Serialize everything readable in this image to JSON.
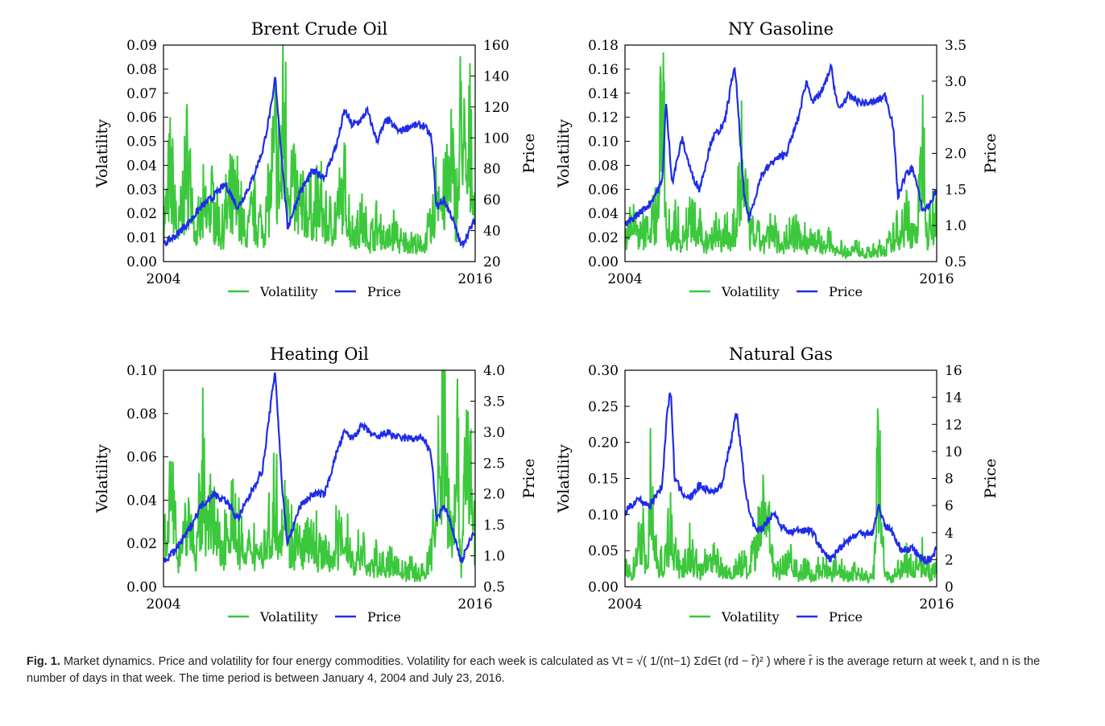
{
  "caption": {
    "label": "Fig. 1.",
    "text_part1": "Market dynamics. Price and volatility for four energy commodities. Volatility for each week is calculated as V",
    "text_formula": "t = √( 1/(nt−1) Σd∈t (rd − r̄)² )",
    "text_part2": " where r̄ is the average return at week t, and n is the number of days in that week. The time period is between January 4, 2004 and July 23, 2016."
  },
  "colors": {
    "volatility": "#3cc83c",
    "price": "#1f2de8"
  },
  "chart_data": [
    {
      "type": "line",
      "title": "Brent Crude Oil",
      "ylabel": "Volatility",
      "ylabel_right": "Price",
      "x_tick_labels": [
        "2004",
        "2016"
      ],
      "xlim": [
        2004,
        2016.56
      ],
      "ylim": [
        0,
        0.09
      ],
      "ylim_right": [
        20,
        160
      ],
      "y_ticks": [
        "0.00",
        "0.01",
        "0.02",
        "0.03",
        "0.04",
        "0.05",
        "0.06",
        "0.07",
        "0.08",
        "0.09"
      ],
      "y_ticks_right": [
        "20",
        "40",
        "60",
        "80",
        "100",
        "120",
        "140",
        "160"
      ],
      "legend": [
        "Volatility",
        "Price"
      ],
      "series": [
        {
          "name": "Price",
          "axis": "right",
          "x": [
            2004.0,
            2004.5,
            2005.0,
            2005.5,
            2006.0,
            2006.5,
            2007.0,
            2007.5,
            2008.0,
            2008.4,
            2008.5,
            2008.75,
            2009.0,
            2009.5,
            2010.0,
            2010.5,
            2011.0,
            2011.3,
            2011.6,
            2012.0,
            2012.2,
            2012.6,
            2013.0,
            2013.5,
            2014.0,
            2014.5,
            2014.8,
            2015.0,
            2015.3,
            2015.6,
            2016.0,
            2016.56
          ],
          "values": [
            31,
            37,
            45,
            55,
            62,
            70,
            55,
            70,
            92,
            125,
            140,
            90,
            42,
            65,
            78,
            75,
            97,
            118,
            108,
            112,
            118,
            98,
            112,
            104,
            108,
            108,
            100,
            55,
            60,
            50,
            30,
            47
          ]
        },
        {
          "name": "Volatility",
          "axis": "left",
          "x": [
            2004.0,
            2004.3,
            2004.6,
            2005.0,
            2005.3,
            2005.6,
            2006.0,
            2006.3,
            2006.6,
            2007.0,
            2007.3,
            2007.6,
            2008.0,
            2008.3,
            2008.5,
            2008.7,
            2008.85,
            2009.0,
            2009.3,
            2009.6,
            2010.0,
            2010.3,
            2010.6,
            2011.0,
            2011.3,
            2011.6,
            2012.0,
            2012.3,
            2012.6,
            2013.0,
            2013.3,
            2013.6,
            2014.0,
            2014.3,
            2014.6,
            2014.9,
            2015.0,
            2015.3,
            2015.6,
            2015.8,
            2016.0,
            2016.2,
            2016.4,
            2016.56
          ],
          "values": [
            0.02,
            0.044,
            0.015,
            0.052,
            0.012,
            0.025,
            0.03,
            0.015,
            0.028,
            0.032,
            0.012,
            0.025,
            0.018,
            0.035,
            0.06,
            0.04,
            0.081,
            0.05,
            0.034,
            0.028,
            0.025,
            0.03,
            0.018,
            0.025,
            0.035,
            0.015,
            0.02,
            0.012,
            0.018,
            0.01,
            0.016,
            0.009,
            0.01,
            0.007,
            0.012,
            0.02,
            0.045,
            0.03,
            0.05,
            0.025,
            0.077,
            0.04,
            0.06,
            0.03
          ]
        }
      ]
    },
    {
      "type": "line",
      "title": "NY Gasoline",
      "ylabel": "Volatility",
      "ylabel_right": "Price",
      "x_tick_labels": [
        "2004",
        "2016"
      ],
      "xlim": [
        2004,
        2016.56
      ],
      "ylim": [
        0,
        0.18
      ],
      "ylim_right": [
        0.5,
        3.5
      ],
      "y_ticks": [
        "0.00",
        "0.02",
        "0.04",
        "0.06",
        "0.08",
        "0.10",
        "0.12",
        "0.14",
        "0.16",
        "0.18"
      ],
      "y_ticks_right": [
        "0.5",
        "1.0",
        "1.5",
        "2.0",
        "2.5",
        "3.0",
        "3.5"
      ],
      "legend": [
        "Volatility",
        "Price"
      ],
      "series": [
        {
          "name": "Price",
          "axis": "right",
          "x": [
            2004.0,
            2004.5,
            2005.0,
            2005.5,
            2005.65,
            2005.9,
            2006.3,
            2006.7,
            2007.0,
            2007.5,
            2008.0,
            2008.4,
            2008.5,
            2008.8,
            2009.0,
            2009.5,
            2010.0,
            2010.5,
            2011.0,
            2011.3,
            2011.6,
            2012.0,
            2012.3,
            2012.6,
            2013.0,
            2013.5,
            2014.0,
            2014.5,
            2014.8,
            2015.0,
            2015.3,
            2015.6,
            2016.0,
            2016.3,
            2016.56
          ],
          "values": [
            1.0,
            1.15,
            1.3,
            1.6,
            2.7,
            1.6,
            2.2,
            1.7,
            1.5,
            2.2,
            2.4,
            3.2,
            2.9,
            1.4,
            1.1,
            1.7,
            1.9,
            2.0,
            2.5,
            3.0,
            2.7,
            2.9,
            3.2,
            2.6,
            2.8,
            2.7,
            2.7,
            2.8,
            2.4,
            1.4,
            1.7,
            1.8,
            1.2,
            1.3,
            1.5
          ]
        },
        {
          "name": "Volatility",
          "axis": "left",
          "x": [
            2004.0,
            2004.3,
            2004.6,
            2005.0,
            2005.3,
            2005.55,
            2005.65,
            2005.8,
            2006.0,
            2006.3,
            2006.6,
            2007.0,
            2007.3,
            2007.6,
            2008.0,
            2008.3,
            2008.5,
            2008.7,
            2008.9,
            2009.0,
            2009.3,
            2009.6,
            2010.0,
            2010.3,
            2010.6,
            2011.0,
            2011.3,
            2011.6,
            2012.0,
            2012.3,
            2012.6,
            2013.0,
            2013.3,
            2013.6,
            2014.0,
            2014.3,
            2014.6,
            2015.0,
            2015.3,
            2015.6,
            2015.8,
            2016.0,
            2016.2,
            2016.4,
            2016.56
          ],
          "values": [
            0.03,
            0.04,
            0.025,
            0.035,
            0.05,
            0.17,
            0.06,
            0.03,
            0.035,
            0.025,
            0.04,
            0.03,
            0.02,
            0.035,
            0.025,
            0.03,
            0.04,
            0.1,
            0.06,
            0.03,
            0.025,
            0.02,
            0.03,
            0.02,
            0.025,
            0.03,
            0.02,
            0.025,
            0.015,
            0.02,
            0.012,
            0.01,
            0.015,
            0.008,
            0.01,
            0.012,
            0.015,
            0.03,
            0.045,
            0.025,
            0.04,
            0.125,
            0.03,
            0.05,
            0.035
          ]
        }
      ]
    },
    {
      "type": "line",
      "title": "Heating Oil",
      "ylabel": "Volatility",
      "ylabel_right": "Price",
      "x_tick_labels": [
        "2004",
        "2016"
      ],
      "xlim": [
        2004,
        2016.56
      ],
      "ylim": [
        0,
        0.1
      ],
      "ylim_right": [
        0.5,
        4.0
      ],
      "y_ticks": [
        "0.00",
        "0.02",
        "0.04",
        "0.06",
        "0.08",
        "0.10"
      ],
      "y_ticks_right": [
        "0.5",
        "1.0",
        "1.5",
        "2.0",
        "2.5",
        "3.0",
        "3.5",
        "4.0"
      ],
      "legend": [
        "Volatility",
        "Price"
      ],
      "series": [
        {
          "name": "Price",
          "axis": "right",
          "x": [
            2004.0,
            2004.5,
            2005.0,
            2005.5,
            2006.0,
            2006.5,
            2007.0,
            2007.5,
            2008.0,
            2008.4,
            2008.5,
            2008.8,
            2009.0,
            2009.5,
            2010.0,
            2010.5,
            2011.0,
            2011.3,
            2011.6,
            2012.0,
            2012.3,
            2012.6,
            2013.0,
            2013.5,
            2014.0,
            2014.5,
            2014.8,
            2015.0,
            2015.3,
            2015.6,
            2016.0,
            2016.3,
            2016.56
          ],
          "values": [
            0.9,
            1.1,
            1.4,
            1.8,
            2.0,
            1.9,
            1.6,
            2.0,
            2.4,
            3.7,
            4.0,
            2.0,
            1.2,
            1.8,
            2.0,
            2.0,
            2.7,
            3.0,
            2.9,
            3.1,
            3.0,
            2.9,
            3.0,
            2.9,
            2.9,
            2.9,
            2.6,
            1.6,
            1.8,
            1.5,
            0.9,
            1.2,
            1.4
          ]
        },
        {
          "name": "Volatility",
          "axis": "left",
          "x": [
            2004.0,
            2004.3,
            2004.6,
            2005.0,
            2005.3,
            2005.6,
            2006.0,
            2006.3,
            2006.6,
            2007.0,
            2007.3,
            2007.6,
            2008.0,
            2008.3,
            2008.5,
            2008.7,
            2008.9,
            2009.0,
            2009.3,
            2009.6,
            2010.0,
            2010.3,
            2010.6,
            2011.0,
            2011.3,
            2011.6,
            2012.0,
            2012.3,
            2012.6,
            2013.0,
            2013.3,
            2013.6,
            2014.0,
            2014.3,
            2014.6,
            2015.0,
            2015.3,
            2015.6,
            2015.8,
            2016.0,
            2016.2,
            2016.4,
            2016.56
          ],
          "values": [
            0.035,
            0.048,
            0.02,
            0.045,
            0.015,
            0.06,
            0.035,
            0.02,
            0.04,
            0.03,
            0.015,
            0.025,
            0.02,
            0.03,
            0.05,
            0.035,
            0.055,
            0.03,
            0.025,
            0.02,
            0.025,
            0.02,
            0.015,
            0.025,
            0.03,
            0.015,
            0.02,
            0.01,
            0.015,
            0.01,
            0.015,
            0.008,
            0.01,
            0.007,
            0.01,
            0.04,
            0.098,
            0.03,
            0.08,
            0.015,
            0.099,
            0.05,
            0.035
          ]
        }
      ]
    },
    {
      "type": "line",
      "title": "Natural Gas",
      "ylabel": "Volatility",
      "ylabel_right": "Price",
      "x_tick_labels": [
        "2004",
        "2016"
      ],
      "xlim": [
        2004,
        2016.56
      ],
      "ylim": [
        0,
        0.3
      ],
      "ylim_right": [
        0,
        16
      ],
      "y_ticks": [
        "0.00",
        "0.05",
        "0.10",
        "0.15",
        "0.20",
        "0.25",
        "0.30"
      ],
      "y_ticks_right": [
        "0",
        "2",
        "4",
        "6",
        "8",
        "10",
        "12",
        "14",
        "16"
      ],
      "legend": [
        "Volatility",
        "Price"
      ],
      "series": [
        {
          "name": "Price",
          "axis": "right",
          "x": [
            2004.0,
            2004.5,
            2005.0,
            2005.5,
            2005.7,
            2005.85,
            2006.0,
            2006.3,
            2006.6,
            2007.0,
            2007.5,
            2007.9,
            2008.0,
            2008.3,
            2008.5,
            2008.8,
            2009.0,
            2009.3,
            2009.6,
            2010.0,
            2010.3,
            2010.6,
            2011.0,
            2011.5,
            2012.0,
            2012.3,
            2012.6,
            2013.0,
            2013.5,
            2014.0,
            2014.2,
            2014.5,
            2014.8,
            2015.0,
            2015.3,
            2015.6,
            2016.0,
            2016.3,
            2016.56
          ],
          "values": [
            5.5,
            6.5,
            6.0,
            7.5,
            13.0,
            14.5,
            8.0,
            7.0,
            6.5,
            7.5,
            7.0,
            7.5,
            8.5,
            11.0,
            13.0,
            8.0,
            5.5,
            4.0,
            4.5,
            5.5,
            4.5,
            4.0,
            4.2,
            4.2,
            2.5,
            2.0,
            2.8,
            3.5,
            4.0,
            4.0,
            6.0,
            4.5,
            4.0,
            3.0,
            2.7,
            2.8,
            2.0,
            2.0,
            2.8
          ]
        },
        {
          "name": "Volatility",
          "axis": "left",
          "x": [
            2004.0,
            2004.3,
            2004.6,
            2004.9,
            2005.0,
            2005.3,
            2005.6,
            2005.8,
            2006.0,
            2006.3,
            2006.6,
            2007.0,
            2007.3,
            2007.6,
            2008.0,
            2008.3,
            2008.6,
            2009.0,
            2009.3,
            2009.6,
            2010.0,
            2010.3,
            2010.6,
            2011.0,
            2011.3,
            2011.6,
            2012.0,
            2012.3,
            2012.6,
            2013.0,
            2013.3,
            2013.6,
            2014.0,
            2014.1,
            2014.2,
            2014.35,
            2014.5,
            2014.8,
            2015.0,
            2015.3,
            2015.6,
            2016.0,
            2016.3,
            2016.56
          ],
          "values": [
            0.03,
            0.02,
            0.1,
            0.04,
            0.15,
            0.05,
            0.03,
            0.12,
            0.05,
            0.03,
            0.06,
            0.025,
            0.04,
            0.05,
            0.03,
            0.02,
            0.04,
            0.03,
            0.06,
            0.155,
            0.04,
            0.03,
            0.05,
            0.02,
            0.03,
            0.02,
            0.04,
            0.02,
            0.035,
            0.02,
            0.03,
            0.015,
            0.02,
            0.06,
            0.27,
            0.08,
            0.02,
            0.015,
            0.025,
            0.04,
            0.03,
            0.05,
            0.02,
            0.03
          ]
        }
      ]
    }
  ]
}
